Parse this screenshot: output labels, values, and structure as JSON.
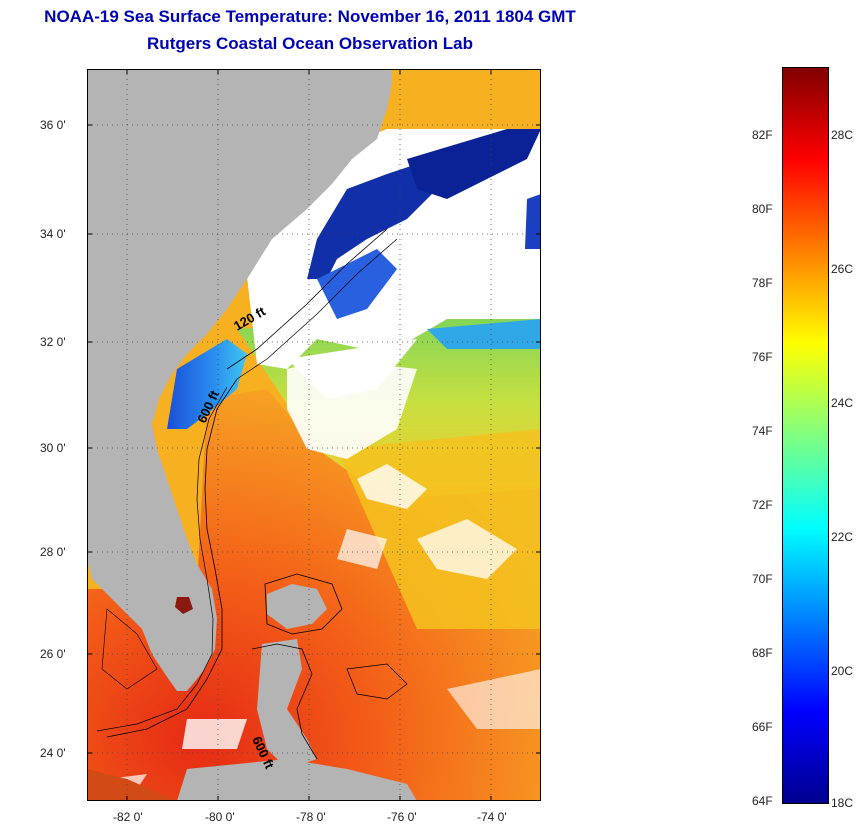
{
  "title": {
    "line1": "NOAA-19 Sea Surface Temperature:  November 16, 2011 1804 GMT",
    "line2": "Rutgers Coastal Ocean Observation Lab"
  },
  "map": {
    "latitude_labels": [
      "36 0'",
      "34 0'",
      "32 0'",
      "30 0'",
      "28 0'",
      "26 0'",
      "24 0'"
    ],
    "longitude_labels": [
      "-82 0'",
      "-80 0'",
      "-78 0'",
      "-76 0'",
      "-74 0'"
    ],
    "contour_labels": [
      "120 ft",
      "600 ft",
      "600 ft"
    ],
    "colors": {
      "land": "#b4b4b4",
      "cloud": "#ffffff",
      "cold": "#0a2a9c",
      "warm": "#e83018"
    }
  },
  "colorbar": {
    "fahrenheit_labels": [
      "82F",
      "80F",
      "78F",
      "76F",
      "74F",
      "72F",
      "70F",
      "68F",
      "66F",
      "64F"
    ],
    "celsius_labels": [
      "28C",
      "26C",
      "24C",
      "22C",
      "20C",
      "18C"
    ],
    "stops": [
      "#00008f",
      "#0000ff",
      "#0080ff",
      "#00ffff",
      "#80ff80",
      "#ffff00",
      "#ff8000",
      "#ff0000",
      "#800000"
    ]
  }
}
